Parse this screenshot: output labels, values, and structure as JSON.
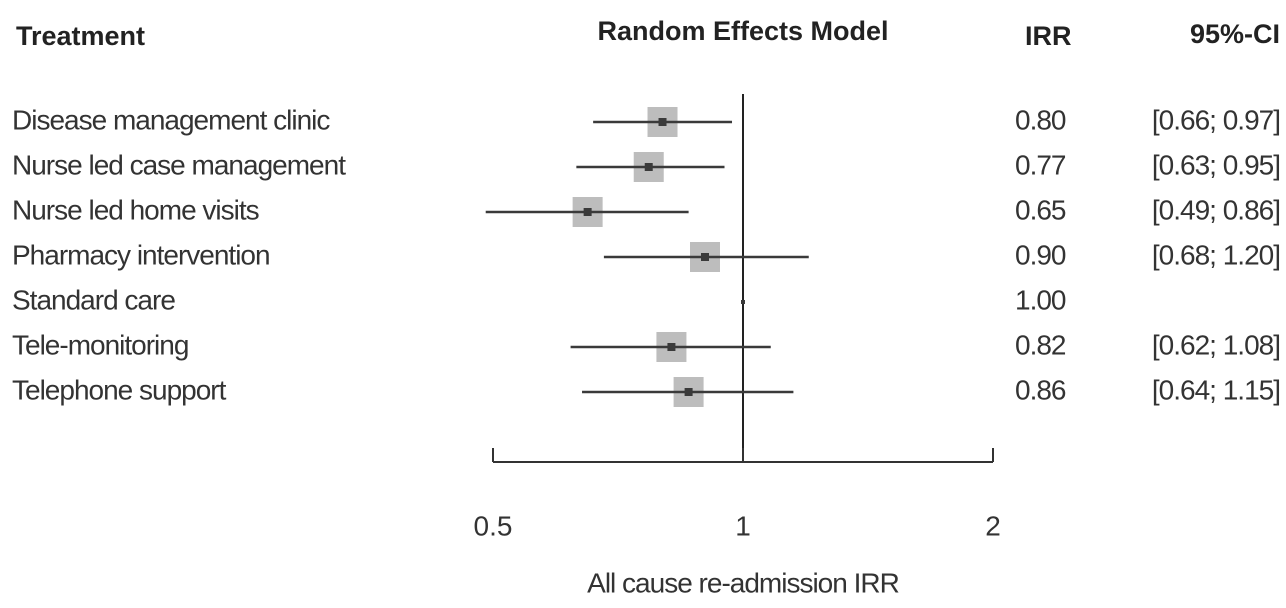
{
  "chart_data": {
    "type": "forest",
    "title": "Random Effects Model",
    "label_header": "Treatment",
    "value_header": "IRR",
    "ci_header": "95%-CI",
    "x_label": "All cause re-admission IRR",
    "categories": [
      "Disease management clinic",
      "Nurse led case management",
      "Nurse led home visits",
      "Pharmacy intervention",
      "Standard care",
      "Tele-monitoring",
      "Telephone support"
    ],
    "values": [
      0.8,
      0.77,
      0.65,
      0.9,
      1,
      0.82,
      0.86
    ],
    "value_labels": [
      "0.80",
      "0.77",
      "0.65",
      "0.90",
      "1.00",
      "0.82",
      "0.86"
    ],
    "lower": [
      0.66,
      0.63,
      0.49,
      0.68,
      null,
      0.62,
      0.64
    ],
    "upper": [
      0.97,
      0.95,
      0.86,
      1.2,
      null,
      1.08,
      1.15
    ],
    "ci_labels": [
      "[0.66; 0.97]",
      "[0.63; 0.95]",
      "[0.49; 0.86]",
      "[0.68; 1.20]",
      null,
      "[0.62; 1.08]",
      "[0.64; 1.15]"
    ],
    "xlim": [
      0.5,
      2
    ],
    "xticks": [
      0.5,
      1,
      2
    ],
    "log_x": true,
    "reference": 1,
    "box_color": "#bdbdbd",
    "line_color": "#3a3a3a"
  }
}
